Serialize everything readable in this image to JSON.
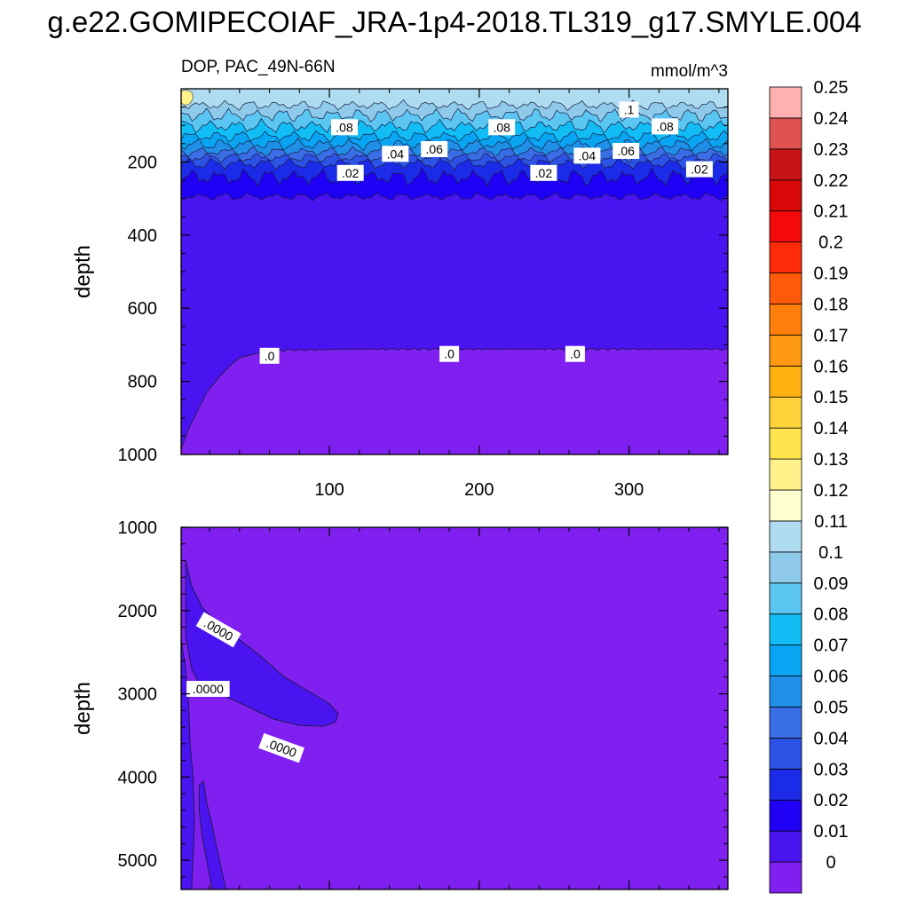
{
  "title": "g.e22.GOMIPECOIAF_JRA-1p4-2018.TL319_g17.SMYLE.004",
  "colors": {
    "levels": [
      "#8020f0",
      "#4a14f0",
      "#1f00f5",
      "#1c2be8",
      "#2c53e5",
      "#3a6ee6",
      "#1f8fe8",
      "#0aa5f2",
      "#12bdf5",
      "#5bc6f2",
      "#8fcaeb",
      "#b0dcf2",
      "#ffffcf",
      "#fff28a",
      "#ffe44d",
      "#ffd13a",
      "#ffb20f",
      "#ff9812",
      "#ff7f0a",
      "#ff5a0a",
      "#ff2c0a",
      "#f50a0a",
      "#d80808",
      "#c81414",
      "#e05252",
      "#ffb0b0"
    ]
  },
  "chart_data": [
    {
      "type": "heatmap",
      "panel": "upper",
      "subtitle_left": "DOP, PAC_49N-66N",
      "subtitle_right": "mmol/m^3",
      "ylabel": "depth",
      "xlim": [
        1,
        366
      ],
      "ylim": [
        1000,
        0
      ],
      "xticks": [
        100,
        200,
        300
      ],
      "yticks": [
        200,
        400,
        600,
        800,
        1000
      ],
      "contour_labels": [
        {
          "text": ".08",
          "x": 110,
          "y": 105
        },
        {
          "text": ".08",
          "x": 215,
          "y": 105
        },
        {
          "text": ".08",
          "x": 324,
          "y": 103
        },
        {
          "text": ".1",
          "x": 300,
          "y": 57
        },
        {
          "text": ".06",
          "x": 170,
          "y": 165
        },
        {
          "text": ".06",
          "x": 298,
          "y": 170
        },
        {
          "text": ".04",
          "x": 144,
          "y": 178
        },
        {
          "text": ".04",
          "x": 272,
          "y": 183
        },
        {
          "text": ".02",
          "x": 114,
          "y": 230
        },
        {
          "text": ".02",
          "x": 243,
          "y": 230
        },
        {
          "text": ".02",
          "x": 347,
          "y": 220
        },
        {
          "text": ".0",
          "x": 60,
          "y": 730
        },
        {
          "text": ".0",
          "x": 180,
          "y": 725
        },
        {
          "text": ".0",
          "x": 264,
          "y": 725
        }
      ]
    },
    {
      "type": "heatmap",
      "panel": "lower",
      "ylabel": "depth",
      "xlim": [
        1,
        366
      ],
      "ylim": [
        5350,
        1000
      ],
      "yticks": [
        1000,
        2000,
        3000,
        4000,
        5000
      ],
      "contour_labels": [
        {
          "text": ".0000",
          "x": 26,
          "y": 2230
        },
        {
          "text": ".0000",
          "x": 19,
          "y": 2940
        },
        {
          "text": ".0000",
          "x": 68,
          "y": 3650
        }
      ]
    }
  ],
  "colorbar": {
    "labels": [
      "0",
      "0.01",
      "0.02",
      "0.03",
      "0.04",
      "0.05",
      "0.06",
      "0.07",
      "0.08",
      "0.09",
      "0.1",
      "0.11",
      "0.12",
      "0.13",
      "0.14",
      "0.15",
      "0.16",
      "0.17",
      "0.18",
      "0.19",
      "0.2",
      "0.21",
      "0.22",
      "0.23",
      "0.24",
      "0.25"
    ]
  }
}
